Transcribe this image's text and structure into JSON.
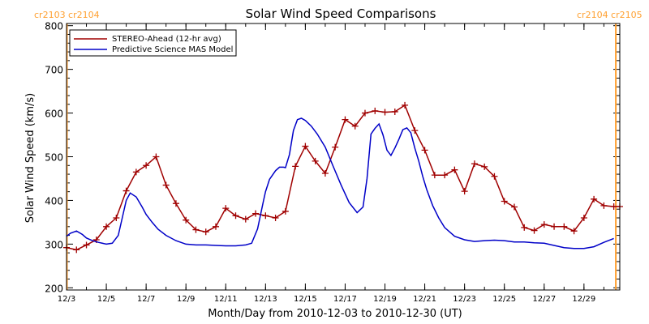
{
  "chart_data": {
    "type": "line",
    "title": "Solar Wind Speed Comparisons",
    "xlabel": "Month/Day from 2010-12-03 to 2010-12-30 (UT)",
    "ylabel": "Solar Wind Speed (km/s)",
    "xlim": [
      3.0,
      30.8
    ],
    "ylim": [
      195,
      805
    ],
    "yticks": [
      200,
      300,
      400,
      500,
      600,
      700,
      800
    ],
    "xticks": [
      {
        "x": 3,
        "label": "12/3"
      },
      {
        "x": 5,
        "label": "12/5"
      },
      {
        "x": 7,
        "label": "12/7"
      },
      {
        "x": 9,
        "label": "12/9"
      },
      {
        "x": 11,
        "label": "12/11"
      },
      {
        "x": 13,
        "label": "12/13"
      },
      {
        "x": 15,
        "label": "12/15"
      },
      {
        "x": 17,
        "label": "12/17"
      },
      {
        "x": 19,
        "label": "12/19"
      },
      {
        "x": 21,
        "label": "12/21"
      },
      {
        "x": 23,
        "label": "12/23"
      },
      {
        "x": 25,
        "label": "12/25"
      },
      {
        "x": 27,
        "label": "12/27"
      },
      {
        "x": 29,
        "label": "12/29"
      }
    ],
    "minor_ticks_per_major": 2,
    "grid": false,
    "legend_position": "top-left",
    "carrington_labels": {
      "left": "cr2103  cr2104",
      "right": "cr2104  cr2105"
    },
    "carrington_lines_x": [
      3.02,
      30.6
    ],
    "carrington_color": "#ffa030",
    "series": [
      {
        "name": "STEREO-Ahead (12-hr avg)",
        "color": "#a00000",
        "markers": true,
        "x": [
          3.0,
          3.5,
          4.0,
          4.5,
          5.0,
          5.5,
          6.0,
          6.5,
          7.0,
          7.5,
          8.0,
          8.5,
          9.0,
          9.5,
          10.0,
          10.5,
          11.0,
          11.5,
          12.0,
          12.5,
          13.0,
          13.5,
          14.0,
          14.5,
          15.0,
          15.5,
          16.0,
          16.5,
          17.0,
          17.5,
          18.0,
          18.5,
          19.0,
          19.5,
          20.0,
          20.5,
          21.0,
          21.5,
          22.0,
          22.5,
          23.0,
          23.5,
          24.0,
          24.5,
          25.0,
          25.5,
          26.0,
          26.5,
          27.0,
          27.5,
          28.0,
          28.5,
          29.0,
          29.5,
          30.0,
          30.5,
          30.8
        ],
        "values": [
          292,
          287,
          298,
          310,
          340,
          360,
          422,
          465,
          480,
          500,
          435,
          393,
          355,
          333,
          328,
          340,
          382,
          365,
          357,
          370,
          365,
          360,
          375,
          478,
          524,
          490,
          462,
          522,
          585,
          570,
          600,
          605,
          602,
          603,
          618,
          560,
          515,
          458,
          458,
          470,
          421,
          484,
          477,
          455,
          398,
          385,
          338,
          331,
          345,
          340,
          340,
          330,
          360,
          403,
          388,
          386,
          386
        ]
      },
      {
        "name": "Predictive Science MAS Model",
        "color": "#0000c8",
        "markers": false,
        "x": [
          3.0,
          3.2,
          3.5,
          3.8,
          4.0,
          4.3,
          4.6,
          5.0,
          5.3,
          5.6,
          5.8,
          6.0,
          6.2,
          6.5,
          6.8,
          7.0,
          7.3,
          7.6,
          8.0,
          8.5,
          9.0,
          9.5,
          10.0,
          10.5,
          11.0,
          11.5,
          12.0,
          12.3,
          12.6,
          12.9,
          13.0,
          13.2,
          13.5,
          13.7,
          13.9,
          14.0,
          14.2,
          14.4,
          14.6,
          14.8,
          15.0,
          15.3,
          15.6,
          16.0,
          16.4,
          16.8,
          17.2,
          17.6,
          17.9,
          18.1,
          18.3,
          18.5,
          18.7,
          18.9,
          19.1,
          19.3,
          19.5,
          19.7,
          19.9,
          20.1,
          20.3,
          20.5,
          20.7,
          20.9,
          21.1,
          21.4,
          21.7,
          22.0,
          22.5,
          23.0,
          23.5,
          24.0,
          24.5,
          25.0,
          25.5,
          26.0,
          26.5,
          27.0,
          27.5,
          28.0,
          28.5,
          29.0,
          29.5,
          30.0,
          30.5
        ],
        "values": [
          318,
          325,
          330,
          322,
          314,
          308,
          304,
          300,
          302,
          320,
          360,
          400,
          417,
          408,
          385,
          368,
          350,
          334,
          320,
          308,
          300,
          298,
          298,
          297,
          296,
          296,
          298,
          302,
          335,
          400,
          420,
          448,
          468,
          476,
          476,
          475,
          505,
          560,
          585,
          588,
          583,
          570,
          552,
          522,
          478,
          435,
          395,
          372,
          385,
          450,
          552,
          565,
          575,
          550,
          515,
          503,
          520,
          540,
          562,
          566,
          555,
          520,
          490,
          455,
          425,
          388,
          360,
          338,
          318,
          310,
          306,
          308,
          309,
          308,
          305,
          305,
          303,
          302,
          297,
          292,
          290,
          290,
          294,
          304,
          313
        ]
      }
    ]
  }
}
